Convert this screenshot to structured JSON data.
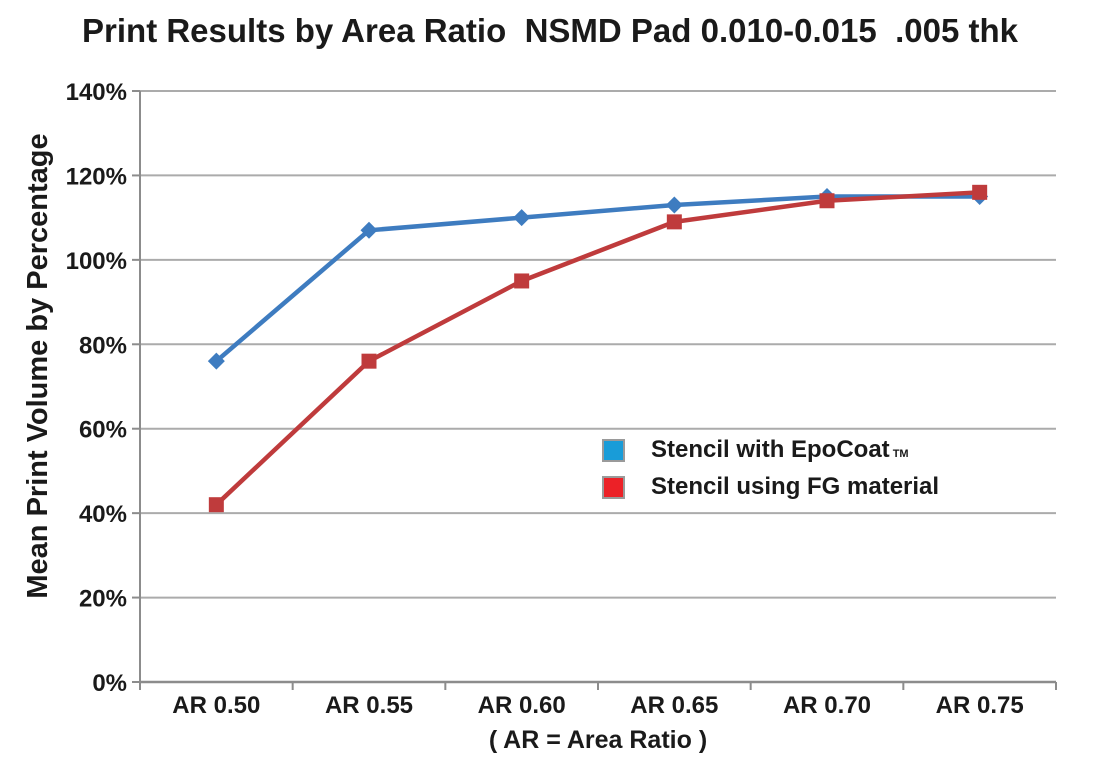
{
  "chart_data": {
    "type": "line",
    "title": "Print Results by Area Ratio  NSMD Pad 0.010-0.015  .005 thk",
    "xlabel": "( AR = Area Ratio )",
    "ylabel": "Mean Print Volume by Percentage",
    "categories": [
      "AR 0.50",
      "AR 0.55",
      "AR 0.60",
      "AR 0.65",
      "AR 0.70",
      "AR 0.75"
    ],
    "y_ticks": [
      "0%",
      "20%",
      "40%",
      "60%",
      "80%",
      "100%",
      "120%",
      "140%"
    ],
    "ylim": [
      0,
      140
    ],
    "y_tick_step": 20,
    "grid": true,
    "legend_position": "inside-right",
    "series": [
      {
        "name": "Stencil with EpoCoat",
        "name_suffix": "TM",
        "marker": "diamond",
        "line_color": "#3E7CC0",
        "legend_color": "#199CD8",
        "values": [
          76,
          107,
          110,
          113,
          115,
          115
        ]
      },
      {
        "name": "Stencil using FG material",
        "name_suffix": "",
        "marker": "square",
        "line_color": "#BF3B3C",
        "legend_color": "#EC2127",
        "values": [
          42,
          76,
          95,
          109,
          114,
          116
        ]
      }
    ]
  },
  "colors": {
    "gridline": "#ABABAB",
    "axis": "#8C8C8C",
    "text": "#1A1A1A",
    "background": "#FFFFFF",
    "legend_swatch_border": "#9A9A9A"
  }
}
